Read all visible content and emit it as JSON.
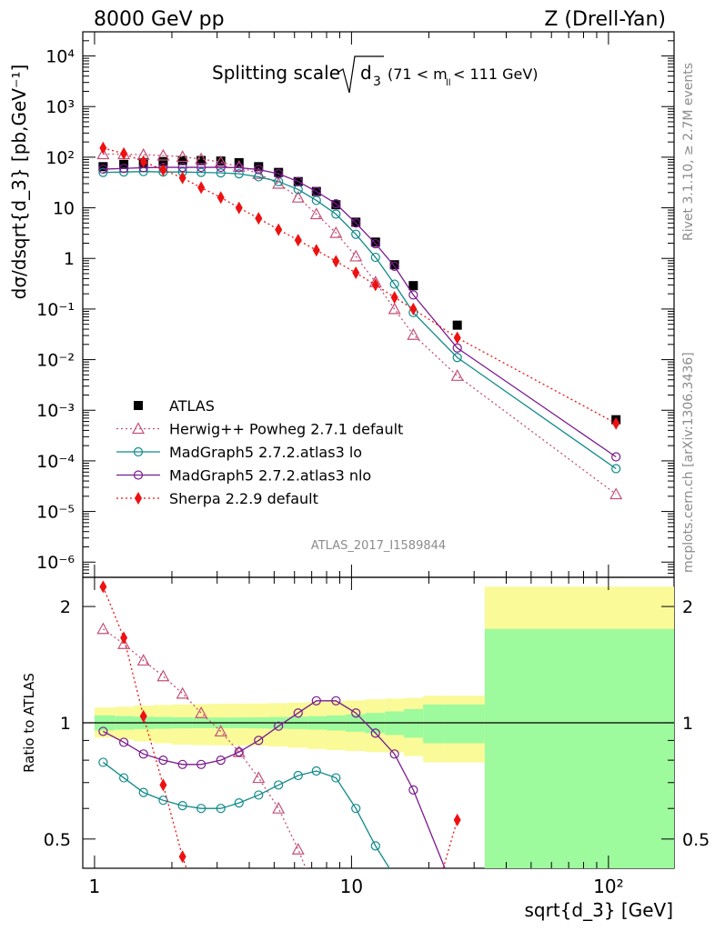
{
  "header": {
    "left": "8000 GeV pp",
    "right": "Z (Drell-Yan)"
  },
  "title": {
    "main": "Splitting scale",
    "sqrt_arg": "d",
    "sqrt_sub": "3",
    "cut_open": "(71 < m",
    "cut_sub": "ll",
    "cut_close": " < 111 GeV)"
  },
  "ylabel_top": "dσ/dsqrt{d_3} [pb,GeV⁻¹]",
  "ylabel_bottom": "Ratio to ATLAS",
  "xlabel": "sqrt{d_3} [GeV]",
  "side_right_top": "Rivet 3.1.10, ≥ 2.7M events",
  "side_right_bottom": "mcplots.cern.ch [arXiv:1306.3436]",
  "watermark": "ATLAS_2017_I1589844",
  "colors": {
    "data": "#000000",
    "herwig": "#c4507a",
    "mg_lo": "#108a8a",
    "mg_nlo": "#7a1a8f",
    "sherpa": "#ee1111",
    "band_inner": "#9dfa9d",
    "band_outer": "#fafa98"
  },
  "chart_data": [
    {
      "type": "scatter",
      "panel": "main",
      "xscale": "log",
      "yscale": "log",
      "xlim": [
        0.9,
        180
      ],
      "ylim": [
        5e-07,
        30000.0
      ],
      "y_tick_labels": [
        "10⁻⁶",
        "10⁻⁵",
        "10⁻⁴",
        "10⁻³",
        "10⁻²",
        "10⁻¹",
        "1",
        "10",
        "10²",
        "10³",
        "10⁴"
      ],
      "x_tick_labels": [
        "1",
        "10",
        "10²"
      ],
      "legend_position": "bottom-left",
      "series": [
        {
          "name": "ATLAS",
          "marker": "square",
          "x": [
            1.08,
            1.3,
            1.55,
            1.85,
            2.2,
            2.6,
            3.1,
            3.65,
            4.35,
            5.2,
            6.2,
            7.3,
            8.7,
            10.4,
            12.4,
            14.7,
            17.4,
            25.8,
            107
          ],
          "y": [
            65,
            72,
            78,
            82,
            86,
            86,
            84,
            78,
            65,
            50,
            33,
            21,
            11.5,
            5.2,
            2.1,
            0.75,
            0.29,
            0.048,
            0.00065
          ]
        },
        {
          "name": "Herwig++ Powheg 2.7.1 default",
          "marker": "triangle-open",
          "line": "dotted",
          "x": [
            1.08,
            1.3,
            1.55,
            1.85,
            2.2,
            2.6,
            3.1,
            3.65,
            4.35,
            5.2,
            6.2,
            7.3,
            8.7,
            10.4,
            12.4,
            14.7,
            17.4,
            25.8,
            107
          ],
          "y": [
            115,
            115,
            112,
            108,
            102,
            92,
            80,
            65,
            47,
            30,
            16,
            7.5,
            3.2,
            1.1,
            0.34,
            0.1,
            0.031,
            0.0048,
            2.2e-05
          ]
        },
        {
          "name": "MadGraph5 2.7.2.atlas3 lo",
          "marker": "circle-open",
          "line": "solid",
          "x": [
            1.08,
            1.3,
            1.55,
            1.85,
            2.2,
            2.6,
            3.1,
            3.65,
            4.35,
            5.2,
            6.2,
            7.3,
            8.7,
            10.4,
            12.4,
            14.7,
            17.4,
            25.8,
            107
          ],
          "y": [
            50,
            51,
            52,
            51,
            51,
            50,
            49,
            47,
            41,
            33,
            23,
            14,
            7.5,
            3.0,
            1.05,
            0.31,
            0.085,
            0.011,
            7e-05
          ]
        },
        {
          "name": "MadGraph5 2.7.2.atlas3 nlo",
          "marker": "circle-open",
          "line": "solid",
          "x": [
            1.08,
            1.3,
            1.55,
            1.85,
            2.2,
            2.6,
            3.1,
            3.65,
            4.35,
            5.2,
            6.2,
            7.3,
            8.7,
            10.4,
            12.4,
            14.7,
            17.4,
            25.8,
            107
          ],
          "y": [
            58,
            60,
            62,
            63,
            63,
            63,
            63,
            62,
            57,
            47,
            33,
            21,
            12,
            5.0,
            1.95,
            0.7,
            0.19,
            0.017,
            0.00012
          ]
        },
        {
          "name": "Sherpa 2.2.9 default",
          "marker": "diamond",
          "line": "dotted",
          "x": [
            1.08,
            1.3,
            1.55,
            1.85,
            2.2,
            2.6,
            3.1,
            3.65,
            4.35,
            5.2,
            6.2,
            7.3,
            8.7,
            10.4,
            12.4,
            14.7,
            17.4,
            25.8,
            107
          ],
          "y": [
            152,
            118,
            82,
            56,
            39,
            25,
            16,
            10,
            6.2,
            3.7,
            2.3,
            1.45,
            0.88,
            0.52,
            0.3,
            0.17,
            0.1,
            0.027,
            0.00055
          ]
        }
      ]
    },
    {
      "type": "line",
      "panel": "ratio",
      "xscale": "log",
      "yscale": "log",
      "xlim": [
        0.9,
        180
      ],
      "ylim": [
        0.42,
        2.38
      ],
      "y_tick_labels": [
        "0.5",
        "1",
        "2"
      ],
      "bands": {
        "edges": [
          1,
          1.2,
          1.42,
          1.7,
          2.0,
          2.4,
          2.85,
          3.35,
          4.0,
          4.75,
          5.65,
          6.75,
          8.0,
          9.5,
          11.3,
          13.5,
          16,
          19,
          23,
          33,
          180
        ],
        "inner_low": [
          0.955,
          0.96,
          0.963,
          0.965,
          0.967,
          0.968,
          0.968,
          0.968,
          0.967,
          0.965,
          0.963,
          0.96,
          0.955,
          0.948,
          0.94,
          0.93,
          0.915,
          0.885,
          0.885,
          0.3
        ],
        "inner_high": [
          1.045,
          1.04,
          1.037,
          1.035,
          1.033,
          1.032,
          1.032,
          1.032,
          1.033,
          1.035,
          1.037,
          1.04,
          1.045,
          1.052,
          1.06,
          1.07,
          1.085,
          1.115,
          1.115,
          1.75
        ],
        "outer_low": [
          0.915,
          0.905,
          0.895,
          0.885,
          0.878,
          0.875,
          0.874,
          0.873,
          0.872,
          0.868,
          0.862,
          0.855,
          0.85,
          0.845,
          0.84,
          0.838,
          0.82,
          0.79,
          0.79,
          0.3
        ],
        "outer_high": [
          1.095,
          1.1,
          1.108,
          1.112,
          1.115,
          1.118,
          1.12,
          1.121,
          1.122,
          1.124,
          1.128,
          1.132,
          1.137,
          1.143,
          1.15,
          1.155,
          1.16,
          1.175,
          1.175,
          2.25
        ]
      },
      "series": [
        {
          "name": "Herwig++ Powheg 2.7.1 default",
          "x": [
            1.08,
            1.3,
            1.55,
            1.85,
            2.2,
            2.6,
            3.1,
            3.65,
            4.35,
            5.2,
            6.2,
            7.3
          ],
          "y": [
            1.75,
            1.6,
            1.45,
            1.32,
            1.19,
            1.06,
            0.95,
            0.84,
            0.72,
            0.6,
            0.47,
            0.36
          ]
        },
        {
          "name": "MadGraph5 2.7.2.atlas3 lo",
          "x": [
            1.08,
            1.3,
            1.55,
            1.85,
            2.2,
            2.6,
            3.1,
            3.65,
            4.35,
            5.2,
            6.2,
            7.3,
            8.7,
            10.4,
            12.4,
            14.7
          ],
          "y": [
            0.79,
            0.72,
            0.66,
            0.63,
            0.61,
            0.6,
            0.6,
            0.62,
            0.65,
            0.69,
            0.73,
            0.75,
            0.72,
            0.6,
            0.48,
            0.4
          ]
        },
        {
          "name": "MadGraph5 2.7.2.atlas3 nlo",
          "x": [
            1.08,
            1.3,
            1.55,
            1.85,
            2.2,
            2.6,
            3.1,
            3.65,
            4.35,
            5.2,
            6.2,
            7.3,
            8.7,
            10.4,
            12.4,
            14.7,
            17.4,
            25.8
          ],
          "y": [
            0.95,
            0.89,
            0.83,
            0.8,
            0.78,
            0.78,
            0.8,
            0.84,
            0.9,
            0.98,
            1.06,
            1.14,
            1.14,
            1.06,
            0.94,
            0.83,
            0.67,
            0.35
          ]
        },
        {
          "name": "Sherpa 2.2.9 default",
          "x": [
            1.08,
            1.3,
            1.55,
            1.85,
            2.2,
            25.8
          ],
          "y": [
            2.25,
            1.66,
            1.04,
            0.69,
            0.45,
            0.56
          ]
        }
      ]
    }
  ]
}
